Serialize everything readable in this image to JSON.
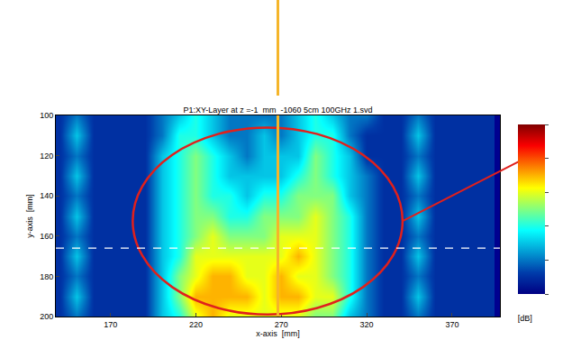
{
  "chart_data": {
    "type": "heatmap",
    "title": "P1:XY-Layer at z =-1  mm  -1060 5cm 100GHz 1.svd",
    "x_label": "x-axis  [mm]",
    "y_label": "y-axis  [mm]",
    "colorbar_label": "[dB]",
    "color": "Jet",
    "x": [
      140,
      150,
      160,
      170,
      180,
      190,
      200,
      210,
      220,
      230,
      240,
      250,
      260,
      270,
      280,
      290,
      300,
      310,
      320,
      330,
      340,
      350,
      360,
      370,
      380,
      390
    ],
    "y": [
      100,
      110,
      120,
      130,
      140,
      150,
      160,
      170,
      180,
      190,
      200
    ],
    "z": [
      [
        1,
        2,
        1,
        1,
        1,
        1,
        2,
        3,
        4,
        3,
        2,
        2,
        2,
        2,
        3,
        4,
        3,
        2,
        2,
        1,
        1,
        2,
        1,
        1,
        1,
        1
      ],
      [
        1,
        3,
        1,
        1,
        1,
        1,
        2,
        4,
        4,
        3,
        2,
        2,
        3,
        2,
        3,
        4,
        4,
        2,
        1,
        1,
        1,
        3,
        1,
        1,
        1,
        1
      ],
      [
        1,
        2,
        1,
        1,
        1,
        1,
        3,
        4,
        5,
        4,
        3,
        2,
        3,
        3,
        3,
        5,
        4,
        3,
        1,
        1,
        1,
        2,
        1,
        1,
        1,
        1
      ],
      [
        1,
        3,
        1,
        1,
        1,
        1,
        3,
        4,
        5,
        4,
        3,
        3,
        3,
        3,
        4,
        5,
        4,
        3,
        2,
        1,
        1,
        3,
        1,
        1,
        1,
        1
      ],
      [
        1,
        2,
        1,
        1,
        1,
        1,
        3,
        4,
        5,
        4,
        4,
        3,
        4,
        4,
        5,
        5,
        5,
        3,
        2,
        1,
        1,
        2,
        1,
        1,
        1,
        1
      ],
      [
        1,
        3,
        1,
        1,
        1,
        1,
        3,
        4,
        5,
        5,
        4,
        4,
        5,
        5,
        5,
        6,
        5,
        4,
        2,
        1,
        1,
        3,
        1,
        1,
        1,
        1
      ],
      [
        1,
        2,
        1,
        1,
        1,
        1,
        3,
        4,
        5,
        6,
        5,
        5,
        5,
        6,
        6,
        6,
        5,
        4,
        2,
        1,
        1,
        2,
        1,
        1,
        1,
        1
      ],
      [
        1,
        3,
        1,
        1,
        1,
        1,
        3,
        4,
        6,
        6,
        6,
        6,
        6,
        6,
        7,
        6,
        5,
        4,
        2,
        1,
        1,
        3,
        1,
        1,
        1,
        1
      ],
      [
        1,
        2,
        1,
        1,
        1,
        1,
        3,
        5,
        6,
        7,
        7,
        6,
        6,
        7,
        6,
        6,
        5,
        4,
        2,
        1,
        1,
        2,
        1,
        1,
        1,
        1
      ],
      [
        1,
        3,
        1,
        1,
        1,
        1,
        3,
        5,
        7,
        7,
        7,
        7,
        6,
        7,
        7,
        6,
        6,
        4,
        2,
        1,
        1,
        3,
        1,
        1,
        1,
        1
      ],
      [
        1,
        2,
        1,
        1,
        1,
        1,
        3,
        4,
        6,
        7,
        6,
        6,
        6,
        6,
        6,
        5,
        5,
        3,
        2,
        1,
        1,
        2,
        1,
        1,
        1,
        1
      ]
    ],
    "zlim": [
      0,
      10
    ],
    "xlim": [
      138,
      398
    ],
    "ylim": [
      200,
      100
    ],
    "xticks": [
      170,
      220,
      270,
      320,
      370
    ],
    "yticks": [
      100,
      120,
      140,
      160,
      180,
      200
    ],
    "highlight_ellipse": {
      "x": [
        183,
        341
      ],
      "y": [
        106,
        199
      ]
    },
    "vertical_line_x": 268,
    "horizontal_line_y": 166
  }
}
